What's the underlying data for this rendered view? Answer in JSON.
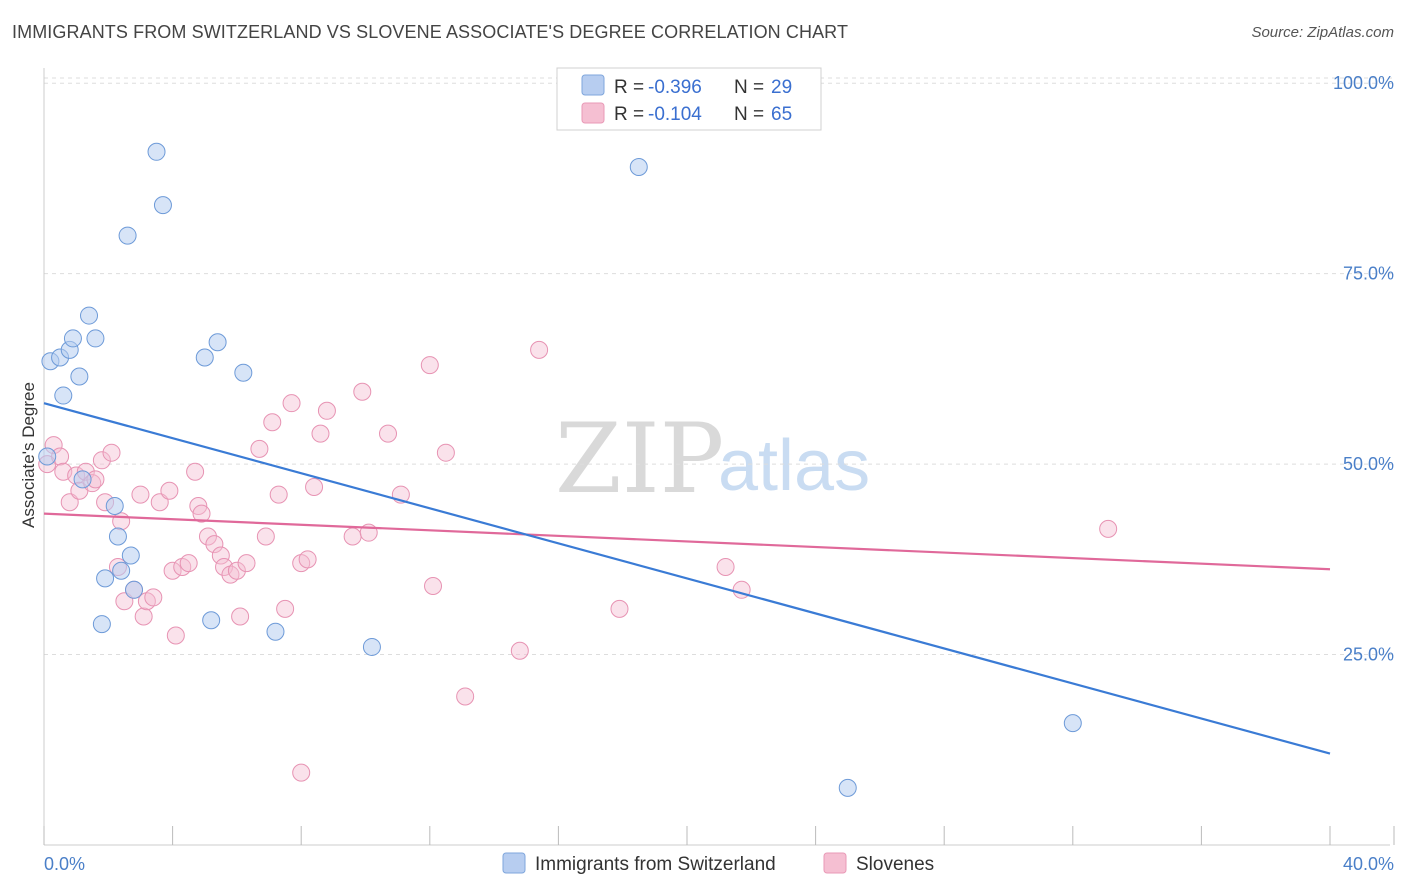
{
  "title": "IMMIGRANTS FROM SWITZERLAND VS SLOVENE ASSOCIATE'S DEGREE CORRELATION CHART",
  "source": "Source: ZipAtlas.com",
  "watermark": {
    "zip": "ZIP",
    "atlas": "atlas"
  },
  "colors": {
    "blue": "#3a7bd5",
    "blue_fill": "#b7cdf0",
    "pink": "#e0699a",
    "pink_fill": "#f5bfd2",
    "axis_text": "#4a7fc8"
  },
  "legend": {
    "r_label": "R =",
    "n_label": "N =",
    "series": [
      {
        "r": "-0.396",
        "n": "29"
      },
      {
        "r": "-0.104",
        "n": "65"
      }
    ]
  },
  "chart_data": {
    "type": "scatter",
    "title": "IMMIGRANTS FROM SWITZERLAND VS SLOVENE ASSOCIATE'S DEGREE CORRELATION CHART",
    "xlabel": "",
    "ylabel": "Associate's Degree",
    "xlim": [
      0,
      40
    ],
    "ylim": [
      0,
      102
    ],
    "x_tick_labels": [
      "0.0%",
      "40.0%"
    ],
    "y_ticks": [
      25,
      50,
      75,
      100
    ],
    "y_tick_labels": [
      "25.0%",
      "50.0%",
      "75.0%",
      "100.0%"
    ],
    "grid": true,
    "legend_position": "top-center",
    "series": [
      {
        "name": "Immigrants from Switzerland",
        "color": "#3a7bd5",
        "points": [
          [
            0.2,
            63.5
          ],
          [
            0.5,
            64.0
          ],
          [
            0.6,
            59.0
          ],
          [
            0.8,
            65.0
          ],
          [
            0.9,
            66.5
          ],
          [
            1.1,
            61.5
          ],
          [
            1.4,
            69.5
          ],
          [
            1.6,
            66.5
          ],
          [
            3.5,
            91.0
          ],
          [
            3.7,
            84.0
          ],
          [
            2.6,
            80.0
          ],
          [
            5.0,
            64.0
          ],
          [
            5.4,
            66.0
          ],
          [
            6.2,
            62.0
          ],
          [
            2.2,
            44.5
          ],
          [
            1.2,
            48.0
          ],
          [
            2.3,
            40.5
          ],
          [
            1.9,
            35.0
          ],
          [
            2.4,
            36.0
          ],
          [
            2.7,
            38.0
          ],
          [
            2.8,
            33.5
          ],
          [
            1.8,
            29.0
          ],
          [
            5.2,
            29.5
          ],
          [
            7.2,
            28.0
          ],
          [
            10.2,
            26.0
          ],
          [
            18.5,
            89.0
          ],
          [
            32.0,
            16.0
          ],
          [
            25.0,
            7.5
          ],
          [
            0.1,
            51.0
          ]
        ],
        "trend": {
          "x": [
            0,
            40
          ],
          "y": [
            58,
            12
          ]
        }
      },
      {
        "name": "Slovenes",
        "color": "#e0699a",
        "points": [
          [
            0.1,
            50.0
          ],
          [
            0.3,
            52.5
          ],
          [
            0.5,
            51.0
          ],
          [
            0.6,
            49.0
          ],
          [
            0.8,
            45.0
          ],
          [
            1.0,
            48.5
          ],
          [
            1.1,
            46.5
          ],
          [
            1.3,
            49.0
          ],
          [
            1.5,
            47.5
          ],
          [
            1.6,
            48.0
          ],
          [
            1.8,
            50.5
          ],
          [
            2.1,
            51.5
          ],
          [
            1.9,
            45.0
          ],
          [
            2.4,
            42.5
          ],
          [
            2.3,
            36.5
          ],
          [
            2.5,
            32.0
          ],
          [
            2.8,
            33.5
          ],
          [
            3.0,
            46.0
          ],
          [
            3.1,
            30.0
          ],
          [
            3.2,
            32.0
          ],
          [
            3.4,
            32.5
          ],
          [
            3.6,
            45.0
          ],
          [
            3.9,
            46.5
          ],
          [
            4.0,
            36.0
          ],
          [
            4.1,
            27.5
          ],
          [
            4.3,
            36.5
          ],
          [
            4.5,
            37.0
          ],
          [
            4.7,
            49.0
          ],
          [
            4.8,
            44.5
          ],
          [
            4.9,
            43.5
          ],
          [
            5.1,
            40.5
          ],
          [
            5.3,
            39.5
          ],
          [
            5.5,
            38.0
          ],
          [
            5.6,
            36.5
          ],
          [
            5.8,
            35.5
          ],
          [
            6.0,
            36.0
          ],
          [
            6.1,
            30.0
          ],
          [
            6.3,
            37.0
          ],
          [
            6.7,
            52.0
          ],
          [
            6.9,
            40.5
          ],
          [
            7.1,
            55.5
          ],
          [
            7.3,
            46.0
          ],
          [
            7.5,
            31.0
          ],
          [
            7.7,
            58.0
          ],
          [
            8.0,
            37.0
          ],
          [
            8.2,
            37.5
          ],
          [
            8.4,
            47.0
          ],
          [
            8.6,
            54.0
          ],
          [
            8.8,
            57.0
          ],
          [
            9.6,
            40.5
          ],
          [
            9.9,
            59.5
          ],
          [
            10.1,
            41.0
          ],
          [
            10.7,
            54.0
          ],
          [
            11.1,
            46.0
          ],
          [
            12.0,
            63.0
          ],
          [
            12.5,
            51.5
          ],
          [
            12.1,
            34.0
          ],
          [
            14.8,
            25.5
          ],
          [
            13.1,
            19.5
          ],
          [
            15.4,
            65.0
          ],
          [
            17.9,
            31.0
          ],
          [
            21.2,
            36.5
          ],
          [
            21.7,
            33.5
          ],
          [
            33.1,
            41.5
          ],
          [
            8.0,
            9.5
          ]
        ],
        "trend": {
          "x": [
            0,
            40
          ],
          "y": [
            43.5,
            36.2
          ]
        }
      }
    ]
  }
}
